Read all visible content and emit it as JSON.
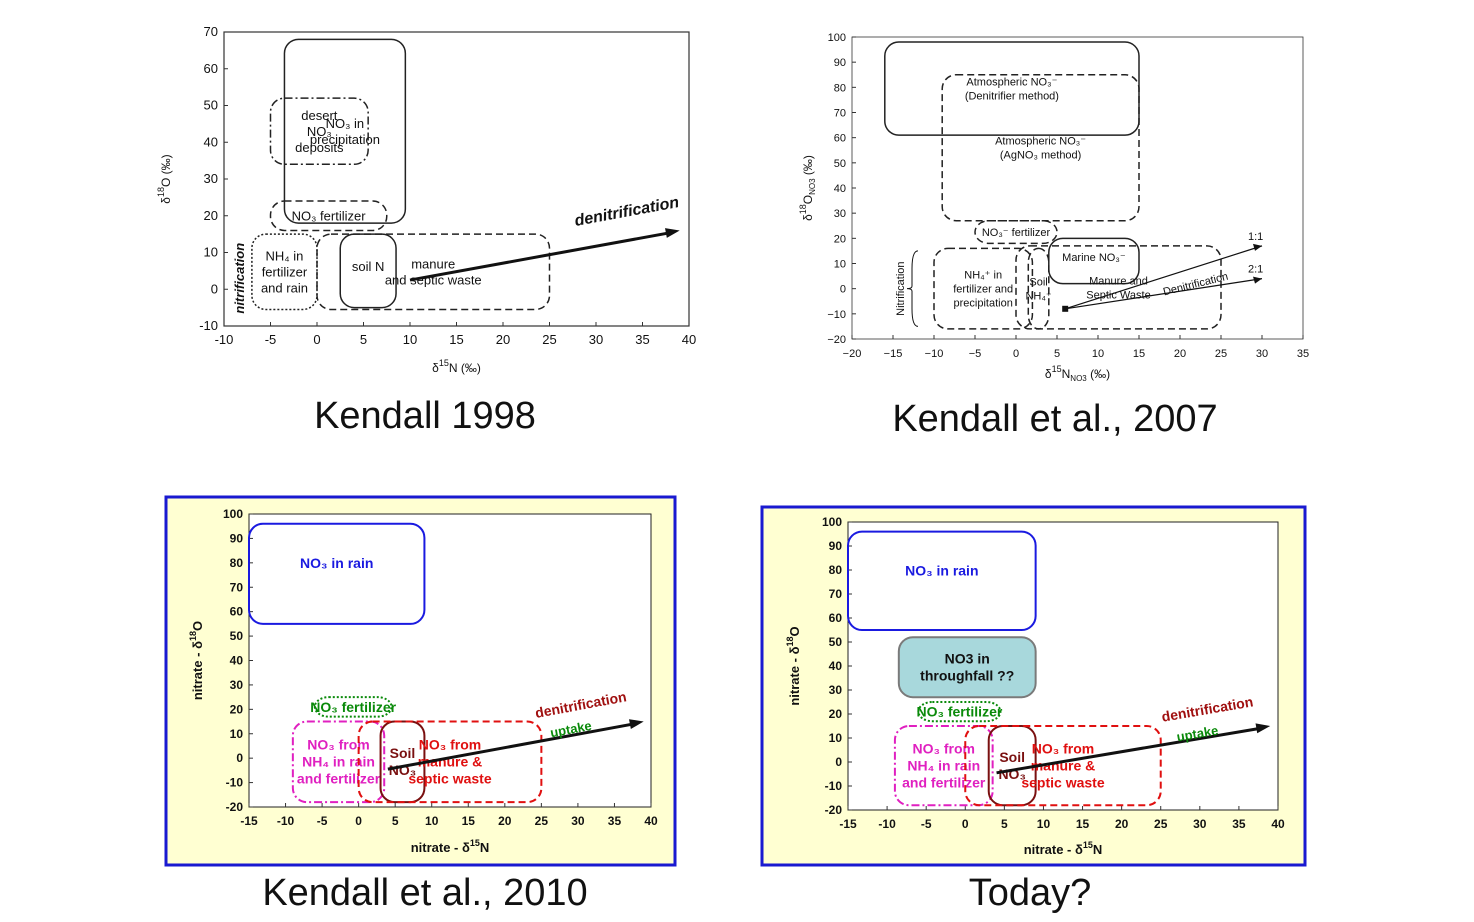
{
  "chart_data": [
    {
      "type": "diagram",
      "caption": "Kendall 1998",
      "xlabel_main": "δ",
      "xlabel_sup": "15",
      "xlabel_rest": "N (‰)",
      "ylabel_main": "δ",
      "ylabel_sup": "18",
      "ylabel_rest": "O (‰)",
      "xlim": [
        -10,
        40
      ],
      "ylim": [
        -10,
        70
      ],
      "x_ticks": [
        "-10",
        "-5",
        "0",
        "5",
        "10",
        "15",
        "20",
        "25",
        "30",
        "35",
        "40"
      ],
      "y_ticks": [
        "-10",
        "0",
        "10",
        "20",
        "30",
        "40",
        "50",
        "60",
        "70"
      ],
      "regions": [
        {
          "label_lines": [
            "NO₃ in",
            "precipitation"
          ],
          "x": [
            -3.5,
            9.5
          ],
          "y": [
            18,
            68
          ],
          "style": "solid"
        },
        {
          "label_lines": [
            "desert",
            "NO₃",
            "deposits"
          ],
          "x": [
            -5,
            5.5
          ],
          "y": [
            34,
            52
          ],
          "style": "dashdot"
        },
        {
          "label_lines": [
            "NO₃ fertilizer"
          ],
          "x": [
            -5,
            7.5
          ],
          "y": [
            16,
            24
          ],
          "style": "dashed"
        },
        {
          "label_lines": [
            "NH₄ in",
            "fertilizer",
            "and rain"
          ],
          "x": [
            -7,
            0
          ],
          "y": [
            -5.5,
            15
          ],
          "style": "dotted"
        },
        {
          "label_lines": [
            "soil N"
          ],
          "x": [
            2.5,
            8.5
          ],
          "y": [
            -5,
            15
          ],
          "style": "solid"
        },
        {
          "label_lines": [
            "manure",
            "and septic waste"
          ],
          "x": [
            0,
            25
          ],
          "y": [
            -5.5,
            15
          ],
          "style": "dashed"
        }
      ],
      "arrow": {
        "label": "denitrification",
        "from": [
          10,
          2.5
        ],
        "to": [
          39,
          16
        ]
      },
      "side_label": "nitrification"
    },
    {
      "type": "diagram",
      "caption": "Kendall et al., 2007",
      "xlabel_main": "δ",
      "xlabel_sup": "15",
      "xlabel_rest": "N",
      "xlabel_sub": "NO3",
      "xlabel_unit": " (‰)",
      "ylabel_main": "δ",
      "ylabel_sup": "18",
      "ylabel_rest": "O",
      "ylabel_sub": "NO3",
      "ylabel_unit": " (‰)",
      "xlim": [
        -20,
        35
      ],
      "ylim": [
        -20,
        100
      ],
      "x_ticks": [
        "−20",
        "−15",
        "−10",
        "−5",
        "0",
        "5",
        "10",
        "15",
        "20",
        "25",
        "30",
        "35"
      ],
      "y_ticks": [
        "−20",
        "−10",
        "0",
        "10",
        "20",
        "30",
        "40",
        "50",
        "60",
        "70",
        "80",
        "90",
        "100"
      ],
      "regions": [
        {
          "label_lines": [
            "Atmospheric NO₃⁻",
            "(Denitrifier method)"
          ],
          "x": [
            -16,
            15
          ],
          "y": [
            61,
            98
          ],
          "style": "solid"
        },
        {
          "label_lines": [
            "Atmospheric NO₃⁻",
            "(AgNO₃ method)"
          ],
          "x": [
            -9,
            15
          ],
          "y": [
            27,
            85
          ],
          "style": "dashed"
        },
        {
          "label_lines": [
            "NO₃⁻ fertilizer"
          ],
          "x": [
            -5,
            5
          ],
          "y": [
            18,
            27
          ],
          "style": "dashed"
        },
        {
          "label_lines": [
            "Marine NO₃⁻"
          ],
          "x": [
            4,
            15
          ],
          "y": [
            2,
            20
          ],
          "style": "solid"
        },
        {
          "label_lines": [
            "NH₄⁺ in",
            "fertilizer and",
            "precipitation"
          ],
          "x": [
            -10,
            2
          ],
          "y": [
            -16,
            16
          ],
          "style": "dashed"
        },
        {
          "label_lines": [
            "Soil",
            "NH₄⁺"
          ],
          "x": [
            1.5,
            4
          ],
          "y": [
            -16,
            16
          ],
          "style": "dashed"
        },
        {
          "label_lines": [
            "Manure and",
            "Septic Waste"
          ],
          "x": [
            0,
            25
          ],
          "y": [
            -16,
            17
          ],
          "style": "dashed"
        }
      ],
      "lines": [
        {
          "label": "1:1",
          "from": [
            6,
            -8
          ],
          "to": [
            30,
            17
          ]
        },
        {
          "label": "2:1",
          "from": [
            6,
            -8
          ],
          "to": [
            30,
            4
          ]
        }
      ],
      "arrow": {
        "label": "Denitrification"
      },
      "side_label": "Nitrification"
    },
    {
      "type": "diagram",
      "caption": "Kendall et al., 2010",
      "xlabel_main": "nitrate - δ",
      "xlabel_sup": "15",
      "xlabel_rest": "N",
      "ylabel_main": "nitrate - δ",
      "ylabel_sup": "18",
      "ylabel_rest": "O",
      "xlim": [
        -15,
        40
      ],
      "ylim": [
        -20,
        100
      ],
      "x_ticks": [
        "-15",
        "-10",
        "-5",
        "0",
        "5",
        "10",
        "15",
        "20",
        "25",
        "30",
        "35",
        "40"
      ],
      "y_ticks": [
        "-20",
        "-10",
        "0",
        "10",
        "20",
        "30",
        "40",
        "50",
        "60",
        "70",
        "80",
        "90",
        "100"
      ],
      "regions": [
        {
          "label_lines": [
            "NO₃ in rain"
          ],
          "x": [
            -15,
            9
          ],
          "y": [
            55,
            96
          ],
          "style": "solid",
          "color": "#1a1ae0"
        },
        {
          "label_lines": [
            "NO₃ fertilizer"
          ],
          "x": [
            -6,
            4.5
          ],
          "y": [
            17,
            25
          ],
          "style": "dotted",
          "color": "#0a8a0a"
        },
        {
          "label_lines": [
            "NO₃ from",
            "NH₄ in rain",
            "and fertilizer"
          ],
          "x": [
            -9,
            3.5
          ],
          "y": [
            -18,
            15
          ],
          "style": "dashdot",
          "color": "#e020c0"
        },
        {
          "label_lines": [
            "Soil",
            "NO₃"
          ],
          "x": [
            3,
            9
          ],
          "y": [
            -18,
            15
          ],
          "style": "solid",
          "color": "#7a1010"
        },
        {
          "label_lines": [
            "NO₃ from",
            "manure &",
            "septic waste"
          ],
          "x": [
            0,
            25
          ],
          "y": [
            -18,
            15
          ],
          "style": "dashed",
          "color": "#e01010"
        }
      ],
      "arrow": {
        "label": "denitrification",
        "label2": "uptake",
        "from": [
          4,
          -4.5
        ],
        "to": [
          39,
          15
        ]
      }
    },
    {
      "type": "diagram",
      "caption": "Today?",
      "xlabel_main": "nitrate - δ",
      "xlabel_sup": "15",
      "xlabel_rest": "N",
      "ylabel_main": "nitrate - δ",
      "ylabel_sup": "18",
      "ylabel_rest": "O",
      "xlim": [
        -15,
        40
      ],
      "ylim": [
        -20,
        100
      ],
      "x_ticks": [
        "-15",
        "-10",
        "-5",
        "0",
        "5",
        "10",
        "15",
        "20",
        "25",
        "30",
        "35",
        "40"
      ],
      "y_ticks": [
        "-20",
        "-10",
        "0",
        "10",
        "20",
        "30",
        "40",
        "50",
        "60",
        "70",
        "80",
        "90",
        "100"
      ],
      "regions": [
        {
          "label_lines": [
            "NO₃ in rain"
          ],
          "x": [
            -15,
            9
          ],
          "y": [
            55,
            96
          ],
          "style": "solid",
          "color": "#1a1ae0"
        },
        {
          "label_lines": [
            "NO3 in",
            "throughfall ??"
          ],
          "x": [
            -8.5,
            9
          ],
          "y": [
            27,
            52
          ],
          "style": "filled",
          "color": "#7a7a7a",
          "fill": "#a8d8dc"
        },
        {
          "label_lines": [
            "NO₃ fertilizer"
          ],
          "x": [
            -6,
            4.5
          ],
          "y": [
            17,
            25
          ],
          "style": "dotted",
          "color": "#0a8a0a"
        },
        {
          "label_lines": [
            "NO₃ from",
            "NH₄ in rain",
            "and fertilizer"
          ],
          "x": [
            -9,
            3.5
          ],
          "y": [
            -18,
            15
          ],
          "style": "dashdot",
          "color": "#e020c0"
        },
        {
          "label_lines": [
            "Soil",
            "NO₃"
          ],
          "x": [
            3,
            9
          ],
          "y": [
            -18,
            15
          ],
          "style": "solid",
          "color": "#7a1010"
        },
        {
          "label_lines": [
            "NO₃ from",
            "manure &",
            "septic waste"
          ],
          "x": [
            0,
            25
          ],
          "y": [
            -18,
            15
          ],
          "style": "dashed",
          "color": "#e01010"
        }
      ],
      "arrow": {
        "label": "denitrification",
        "label2": "uptake",
        "from": [
          4,
          -4.5
        ],
        "to": [
          39,
          15
        ]
      }
    }
  ]
}
